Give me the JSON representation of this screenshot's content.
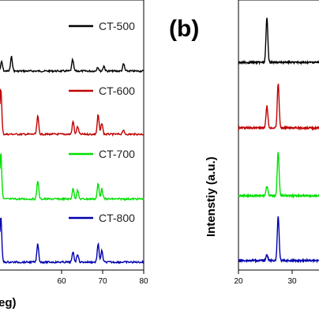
{
  "panel_b_label": "(b)",
  "chart_data": [
    {
      "type": "line",
      "title": "",
      "xlabel": "eg)",
      "ylabel": "",
      "x_ticks": [
        60,
        70,
        80
      ],
      "xlim": [
        45,
        80
      ],
      "series": [
        {
          "name": "CT-500",
          "color": "#000000",
          "peaks": [
            [
              45.4,
              0.18
            ],
            [
              47.8,
              0.28
            ],
            [
              62.7,
              0.22
            ],
            [
              68.8,
              0.08
            ],
            [
              70.3,
              0.1
            ],
            [
              75.1,
              0.14
            ]
          ]
        },
        {
          "name": "CT-600",
          "color": "#c00000",
          "peaks": [
            [
              45.2,
              0.9
            ],
            [
              54.2,
              0.35
            ],
            [
              62.8,
              0.25
            ],
            [
              63.9,
              0.15
            ],
            [
              68.9,
              0.38
            ],
            [
              69.8,
              0.22
            ],
            [
              75.0,
              0.08
            ]
          ]
        },
        {
          "name": "CT-700",
          "color": "#00e000",
          "peaks": [
            [
              45.2,
              0.9
            ],
            [
              54.2,
              0.36
            ],
            [
              62.8,
              0.2
            ],
            [
              63.9,
              0.17
            ],
            [
              68.9,
              0.3
            ],
            [
              69.8,
              0.2
            ]
          ]
        },
        {
          "name": "CT-800",
          "color": "#0000b0",
          "peaks": [
            [
              45.2,
              0.9
            ],
            [
              54.2,
              0.36
            ],
            [
              62.8,
              0.2
            ],
            [
              63.9,
              0.16
            ],
            [
              68.9,
              0.35
            ],
            [
              69.8,
              0.22
            ]
          ]
        }
      ]
    },
    {
      "type": "line",
      "title": "",
      "xlabel": "",
      "ylabel": "Intenstiy (a.u.)",
      "x_ticks": [
        20,
        30
      ],
      "xlim": [
        20,
        35
      ],
      "series": [
        {
          "name": "CT-500",
          "color": "#000000",
          "peaks": [
            [
              25.3,
              0.9
            ]
          ]
        },
        {
          "name": "CT-600",
          "color": "#c00000",
          "peaks": [
            [
              25.3,
              0.45
            ],
            [
              27.4,
              0.9
            ]
          ]
        },
        {
          "name": "CT-700",
          "color": "#00e000",
          "peaks": [
            [
              25.3,
              0.2
            ],
            [
              27.4,
              0.9
            ]
          ]
        },
        {
          "name": "CT-800",
          "color": "#0000b0",
          "peaks": [
            [
              25.3,
              0.12
            ],
            [
              27.4,
              0.9
            ]
          ]
        }
      ]
    }
  ]
}
